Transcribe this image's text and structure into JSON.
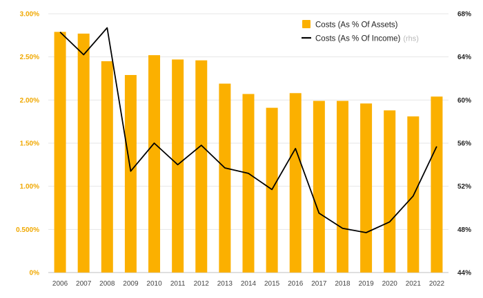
{
  "chart_data": {
    "type": "bar+line",
    "categories": [
      "2006",
      "2007",
      "2008",
      "2009",
      "2010",
      "2011",
      "2012",
      "2013",
      "2014",
      "2015",
      "2016",
      "2017",
      "2018",
      "2019",
      "2020",
      "2021",
      "2022"
    ],
    "series": [
      {
        "name": "Costs (As % Of Assets)",
        "kind": "bar",
        "axis": "left",
        "color": "#FBB000",
        "values": [
          2.79,
          2.77,
          2.45,
          2.29,
          2.52,
          2.47,
          2.46,
          2.19,
          2.07,
          1.91,
          2.08,
          1.99,
          1.99,
          1.96,
          1.88,
          1.81,
          2.04
        ]
      },
      {
        "name": "Costs (As % Of Income)",
        "kind": "line",
        "axis": "right",
        "color": "#000000",
        "values": [
          66.3,
          64.2,
          66.7,
          53.4,
          56.0,
          54.0,
          55.8,
          53.7,
          53.2,
          51.7,
          55.5,
          49.5,
          48.1,
          47.7,
          48.7,
          51.1,
          55.7
        ]
      }
    ],
    "left_axis": {
      "min": 0,
      "max": 3.0,
      "ticks": [
        "0%",
        "0.500%",
        "1.00%",
        "1.50%",
        "2.00%",
        "2.50%",
        "3.00%"
      ],
      "color": "#F0A800"
    },
    "right_axis": {
      "min": 44,
      "max": 68,
      "ticks": [
        "44%",
        "48%",
        "52%",
        "56%",
        "60%",
        "64%",
        "68%"
      ],
      "color": "#222222"
    },
    "legend": {
      "position": "top-right",
      "bar_label": "Costs (As % Of Assets)",
      "line_label": "Costs (As % Of Income)",
      "line_suffix": "(rhs)"
    },
    "grid": true
  }
}
